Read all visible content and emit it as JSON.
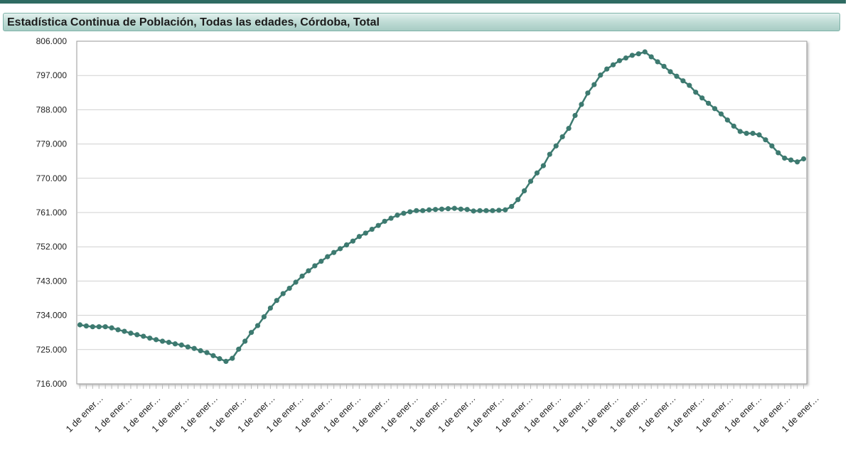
{
  "header": {
    "title": "Estadística Continua de Población, Todas las edades, Córdoba, Total"
  },
  "chart_data": {
    "type": "line",
    "title": "Estadística Continua de Población, Todas las edades, Córdoba, Total",
    "xlabel": "",
    "ylabel": "",
    "ylim": [
      716000,
      806000
    ],
    "yticks": [
      716000,
      725000,
      734000,
      743000,
      752000,
      761000,
      770000,
      779000,
      788000,
      797000,
      806000
    ],
    "ytick_labels": [
      "716.000",
      "725.000",
      "734.000",
      "743.000",
      "752.000",
      "761.000",
      "770.000",
      "779.000",
      "788.000",
      "797.000",
      "806.000"
    ],
    "xtick_label": "1 de ener…",
    "xtick_count": 26,
    "grid": true,
    "line_color": "#3d7a70",
    "marker_color": "#3d7a70",
    "series": [
      {
        "values": [
          731500,
          731200,
          731000,
          731000,
          731000,
          730700,
          730200,
          729800,
          729300,
          728900,
          728500,
          728000,
          727600,
          727200,
          726900,
          726500,
          726200,
          725700,
          725300,
          724700,
          724200,
          723400,
          722600,
          721900,
          722700,
          725100,
          727200,
          729500,
          731300,
          733600,
          735900,
          737900,
          739700,
          741100,
          742700,
          744300,
          745700,
          747000,
          748200,
          749400,
          750500,
          751500,
          752500,
          753500,
          754700,
          755600,
          756600,
          757600,
          758700,
          759500,
          760300,
          760800,
          761200,
          761500,
          761500,
          761700,
          761800,
          761900,
          762000,
          762100,
          761900,
          761800,
          761400,
          761500,
          761500,
          761500,
          761600,
          761700,
          762600,
          764400,
          766700,
          769200,
          771400,
          773300,
          776300,
          778500,
          780900,
          783100,
          786500,
          789400,
          792400,
          794600,
          797100,
          798700,
          799800,
          800900,
          801600,
          802300,
          802700,
          803200,
          801900,
          800600,
          799400,
          798000,
          796800,
          795600,
          794400,
          792600,
          791100,
          789700,
          788300,
          786900,
          785300,
          783700,
          782300,
          781800,
          781800,
          781400,
          780100,
          778500,
          776700,
          775300,
          774800,
          774300,
          775100
        ]
      }
    ]
  }
}
